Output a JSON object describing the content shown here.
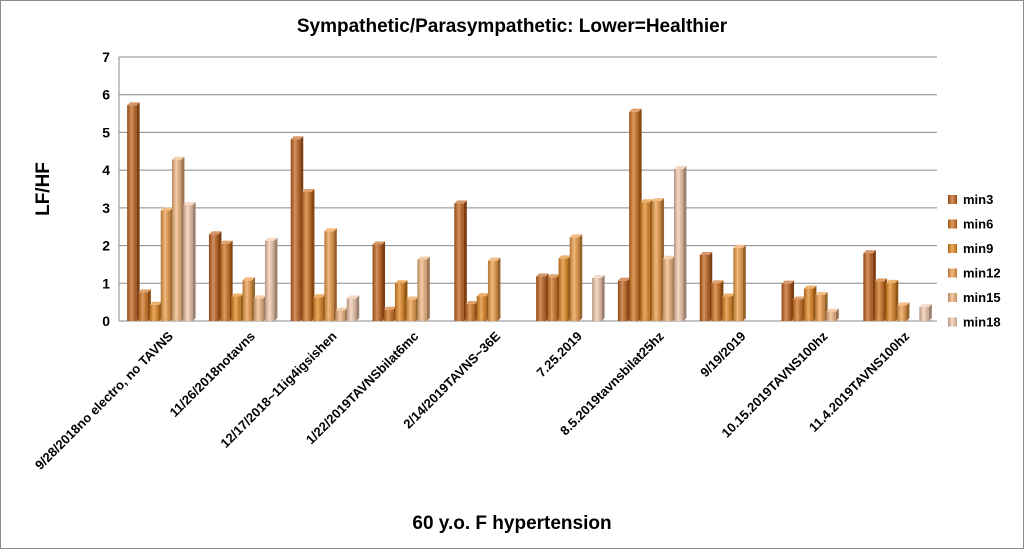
{
  "chart_data": {
    "type": "bar",
    "title": "Sympathetic/Parasympathetic:  Lower=Healthier",
    "xlabel": "60 y.o. F hypertension",
    "ylabel": "LF/HF",
    "ylim": [
      0,
      7
    ],
    "yticks": [
      "0",
      "1",
      "2",
      "3",
      "4",
      "5",
      "6",
      "7"
    ],
    "grid": true,
    "legend_position": "right",
    "categories": [
      "9/28/2018no electro, no TAVNS",
      "11/26/2018notavns",
      "12/17/2018~11ig4igsishen",
      "1/22/2019TAVNSbilat6mc",
      "2/14/2019TAVNS~36E",
      "7.25.2019",
      "8.5.2019tavnsbilat25hz",
      "9/19/2019",
      "10.15.2019TAVNS100hz",
      "11.4.2019TAVNS100hz"
    ],
    "series": [
      {
        "name": "min3",
        "color": "#c0601a",
        "values": [
          5.72,
          2.3,
          4.82,
          2.03,
          3.12,
          1.18,
          1.07,
          1.75,
          0.99,
          1.8
        ]
      },
      {
        "name": "min6",
        "color": "#d06e1c",
        "values": [
          0.76,
          2.05,
          3.42,
          0.3,
          0.45,
          1.16,
          5.55,
          1.0,
          0.57,
          1.05
        ]
      },
      {
        "name": "min9",
        "color": "#e2861e",
        "values": [
          0.43,
          0.65,
          0.63,
          1.0,
          0.66,
          1.66,
          3.15,
          0.65,
          0.86,
          1.01
        ]
      },
      {
        "name": "min12",
        "color": "#ec9a44",
        "values": [
          2.93,
          1.08,
          2.38,
          0.57,
          1.6,
          2.22,
          3.18,
          1.94,
          0.69,
          0.41
        ]
      },
      {
        "name": "min15",
        "color": "#f0b57e",
        "values": [
          4.28,
          0.6,
          0.28,
          1.63,
          0,
          0,
          1.65,
          0,
          0.25,
          0
        ]
      },
      {
        "name": "min18",
        "color": "#f2c8ac",
        "values": [
          3.08,
          2.13,
          0.6,
          0,
          0,
          1.14,
          4.03,
          0,
          0,
          0.37
        ]
      }
    ]
  }
}
